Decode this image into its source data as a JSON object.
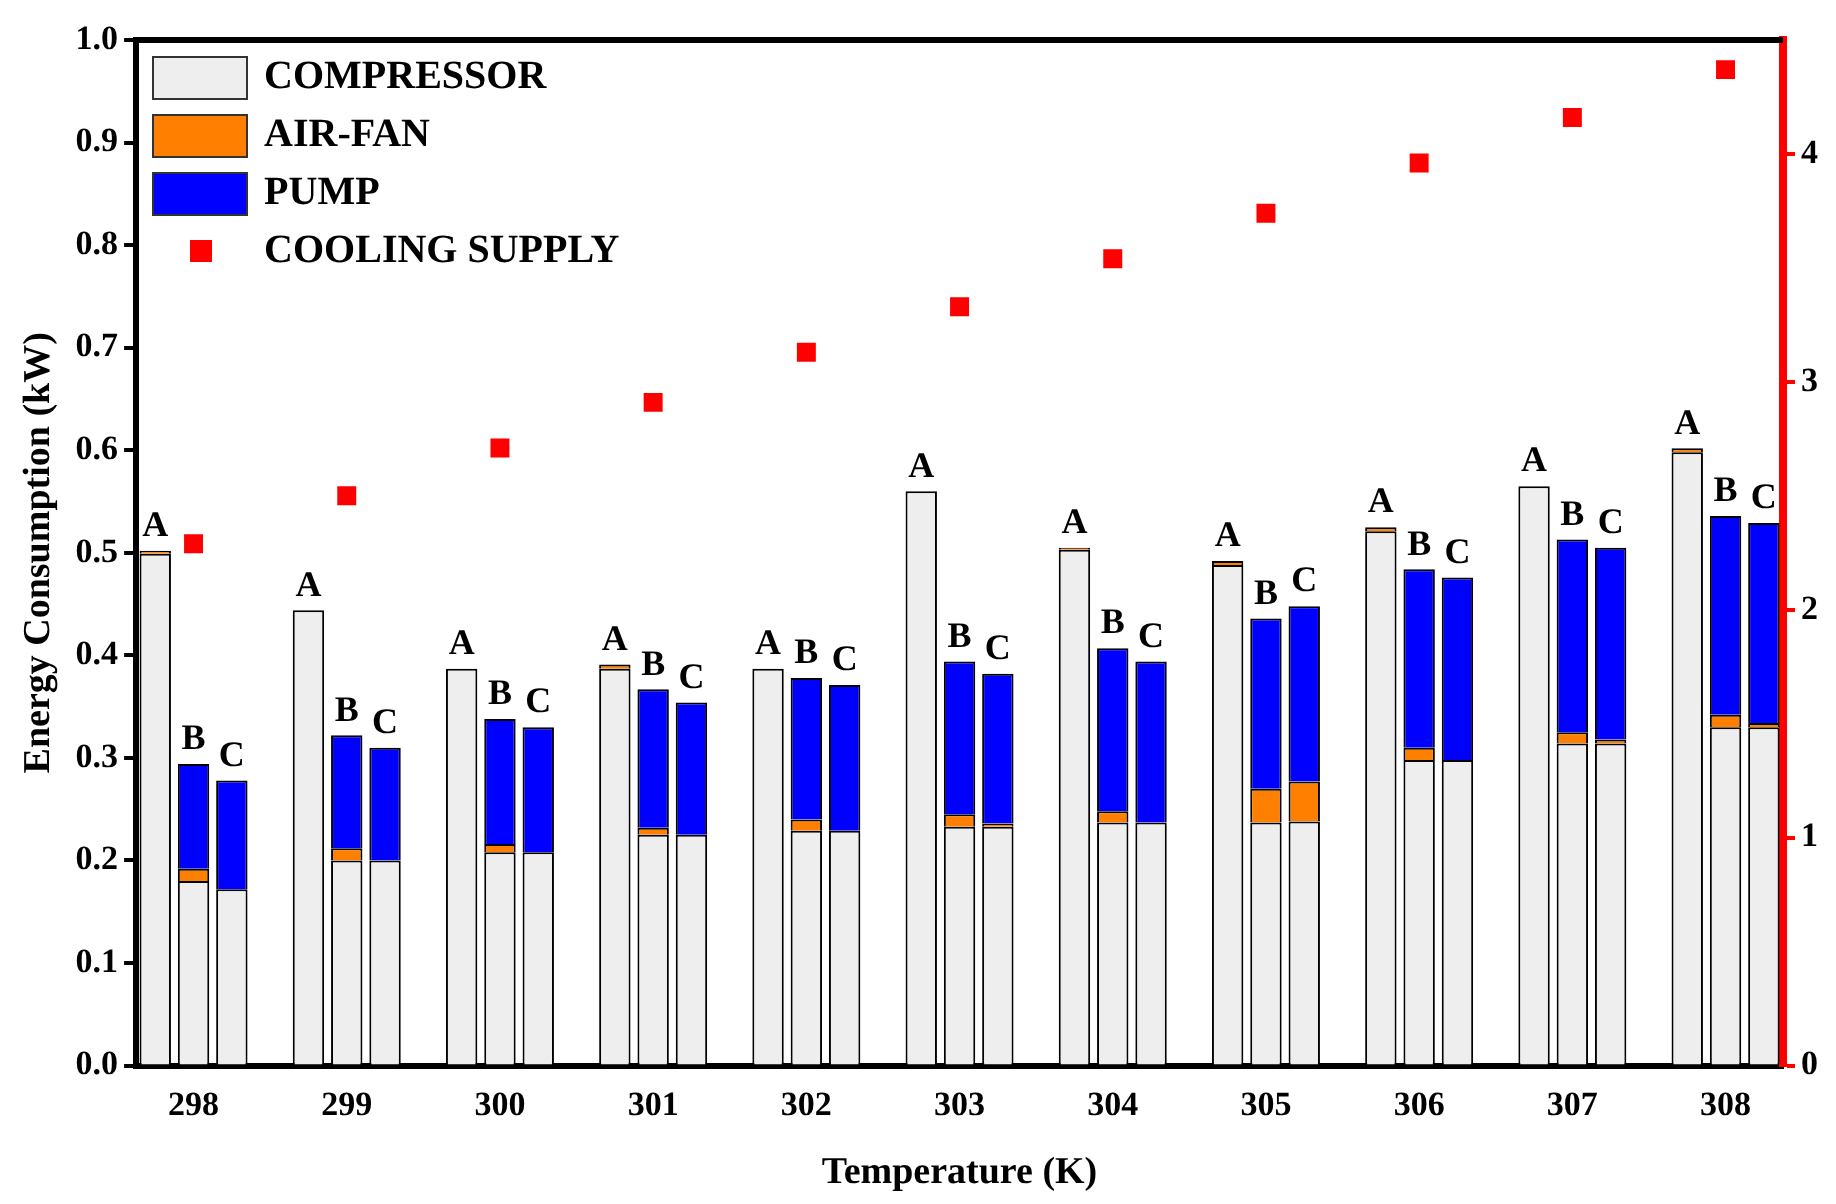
{
  "chart_data": {
    "type": "bar",
    "stacked": true,
    "xlabel": "Temperature (K)",
    "ylabel": "Energy Consumption (kW)",
    "categories": [
      null,
      "298",
      null,
      null,
      null,
      "299",
      null,
      null,
      null,
      "300",
      null,
      null,
      null,
      "301",
      null,
      null,
      null,
      "302",
      null,
      null,
      null,
      "303",
      null,
      null,
      null,
      "304",
      null,
      null,
      null,
      "305",
      null,
      null,
      null,
      "306",
      null,
      null,
      null,
      "307",
      null,
      null,
      null,
      "308",
      null
    ],
    "series": [
      {
        "name": "COMPRESSOR",
        "color": "#eeeeee",
        "values": [
          0.499,
          0.18,
          0.172,
          null,
          0.444,
          0.2,
          0.2,
          null,
          0.387,
          0.208,
          0.208,
          null,
          0.387,
          0.225,
          0.225,
          null,
          0.387,
          0.229,
          0.229,
          null,
          0.56,
          0.233,
          0.233,
          null,
          0.503,
          0.237,
          0.237,
          null,
          0.488,
          0.237,
          0.238,
          null,
          0.521,
          0.298,
          0.298,
          null,
          0.565,
          0.314,
          0.314,
          null,
          0.598,
          0.33,
          0.33
        ]
      },
      {
        "name": "AIR-FAN",
        "color": "#ff8000",
        "values": [
          0.003,
          0.012,
          0,
          null,
          0,
          0.012,
          0,
          null,
          0,
          0.008,
          0,
          null,
          0.004,
          0.007,
          0,
          null,
          0,
          0.011,
          0,
          null,
          0,
          0.012,
          0.003,
          null,
          0.002,
          0.011,
          0,
          null,
          0.004,
          0.033,
          0.039,
          null,
          0.004,
          0.012,
          0,
          null,
          0,
          0.011,
          0.004,
          null,
          0.004,
          0.012,
          0.004
        ]
      },
      {
        "name": "PUMP",
        "color": "#0000ff",
        "values": [
          0,
          0.102,
          0.106,
          null,
          0,
          0.11,
          0.11,
          null,
          0,
          0.122,
          0.122,
          null,
          0,
          0.135,
          0.129,
          null,
          0,
          0.138,
          0.142,
          null,
          0,
          0.149,
          0.146,
          null,
          0,
          0.159,
          0.157,
          null,
          0,
          0.166,
          0.171,
          null,
          0,
          0.174,
          0.178,
          null,
          0,
          0.188,
          0.187,
          null,
          0,
          0.194,
          0.195
        ],
        "value_labels": [
          "A",
          "B",
          "C",
          null,
          "A",
          "B",
          "C",
          null,
          "A",
          "B",
          "C",
          null,
          "A",
          "B",
          "C",
          null,
          "A",
          "B",
          "C",
          null,
          "A",
          "B",
          "C",
          null,
          "A",
          "B",
          "C",
          null,
          "A",
          "B",
          "C",
          null,
          "A",
          "B",
          "C",
          null,
          "A",
          "B",
          "C",
          null,
          "A",
          "B",
          "C"
        ]
      },
      {
        "name": "COOLING SUPPLY",
        "type": "scatter",
        "axis": "y2",
        "marker": "square",
        "color": "#ff0000",
        "values": [
          null,
          2.29,
          null,
          null,
          null,
          2.5,
          null,
          null,
          null,
          2.71,
          null,
          null,
          null,
          2.91,
          null,
          null,
          null,
          3.13,
          null,
          null,
          null,
          3.33,
          null,
          null,
          null,
          3.54,
          null,
          null,
          null,
          3.74,
          null,
          null,
          null,
          3.96,
          null,
          null,
          null,
          4.16,
          null,
          null,
          null,
          4.37,
          null
        ]
      }
    ],
    "ylim": [
      0,
      1.0
    ],
    "yticks": [
      {
        "value": 0,
        "label": "0.0"
      },
      0.1,
      0.2,
      0.3,
      0.4,
      0.5,
      0.6,
      0.7,
      0.8,
      0.9,
      {
        "value": 1,
        "label": "1.0"
      }
    ],
    "y2lim": [
      0,
      4.5
    ],
    "y2ticks": [
      0,
      1,
      2,
      3,
      4
    ],
    "grid": false,
    "legend": "top left"
  }
}
